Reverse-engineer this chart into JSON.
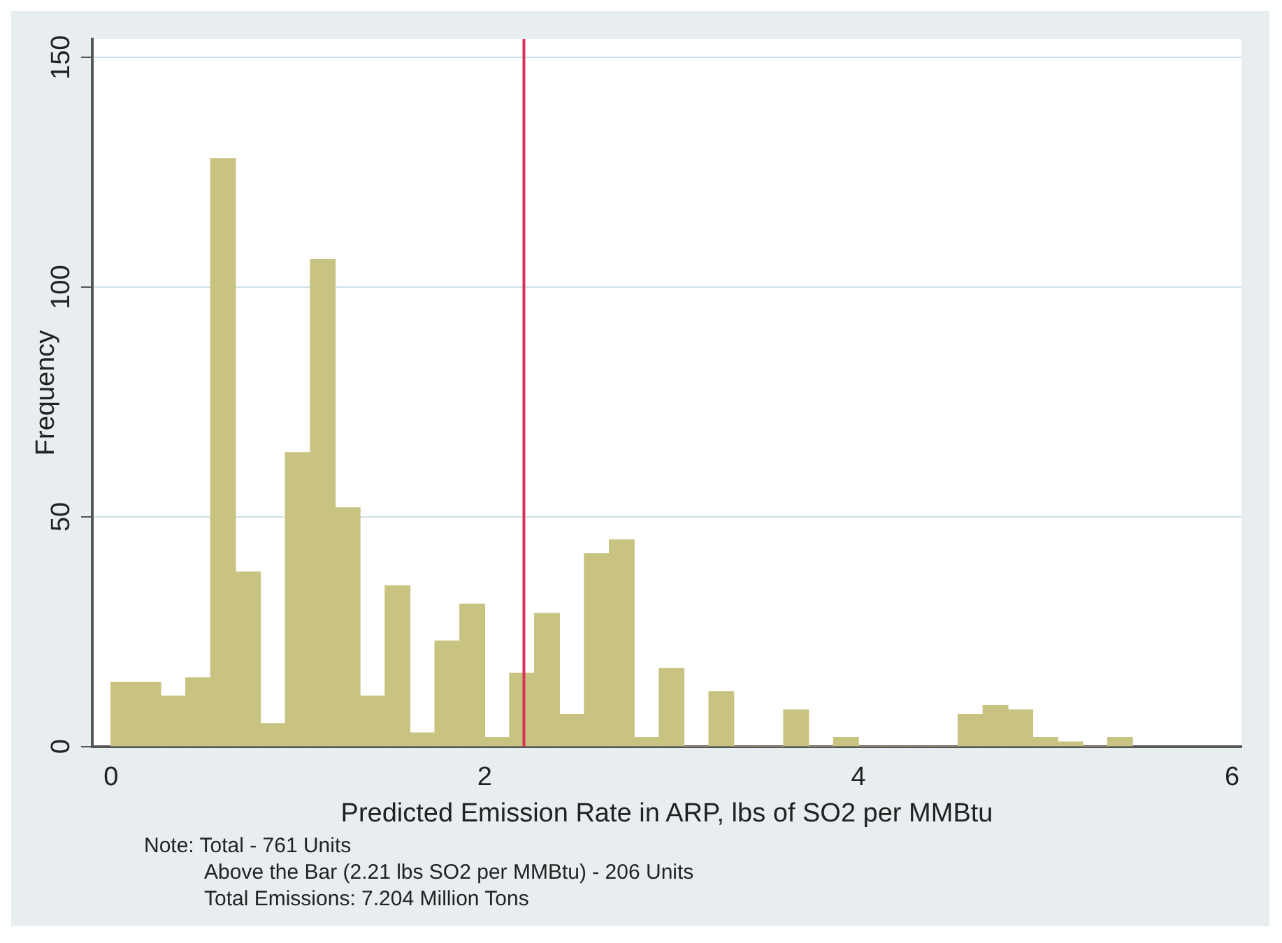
{
  "chart_data": {
    "type": "histogram",
    "xlabel": "Predicted Emission Rate in ARP, lbs of SO2 per MMBtu",
    "ylabel": "Frequency",
    "bins": [
      0,
      0.133,
      0.267,
      0.4,
      0.533,
      0.667,
      0.8,
      0.933,
      1.067,
      1.2,
      1.333,
      1.467,
      1.6,
      1.733,
      1.867,
      2,
      2.133,
      2.267,
      2.4,
      2.533,
      2.667,
      2.8,
      2.933,
      3.067,
      3.2,
      3.333,
      3.467,
      3.6,
      3.733,
      3.867,
      4,
      4.133,
      4.267,
      4.4,
      4.533,
      4.667,
      4.8,
      4.933,
      5.067,
      5.2,
      5.333,
      5.467
    ],
    "values": [
      14,
      14,
      11,
      15,
      128,
      38,
      5,
      64,
      106,
      52,
      11,
      35,
      3,
      23,
      31,
      2,
      16,
      29,
      7,
      42,
      45,
      2,
      17,
      0,
      12,
      0,
      0,
      8,
      0,
      2,
      0,
      0,
      0,
      0,
      7,
      9,
      8,
      2,
      1,
      0,
      2
    ],
    "color": "#c9c381",
    "xlim": [
      -0.1,
      6.05
    ],
    "xticks": [
      0,
      2,
      4,
      6
    ],
    "ylim": [
      0,
      154
    ],
    "yticks": [
      0,
      50,
      100,
      150
    ],
    "grid": "y",
    "ref_lines": [
      {
        "axis": "x",
        "value": 2.21,
        "color": "#d8325a"
      }
    ],
    "annotations": [
      "Note: Total - 761 Units",
      "Above the Bar (2.21 lbs SO2 per MMBtu) - 206 Units",
      "Total Emissions: 7.204 Million Tons"
    ]
  }
}
